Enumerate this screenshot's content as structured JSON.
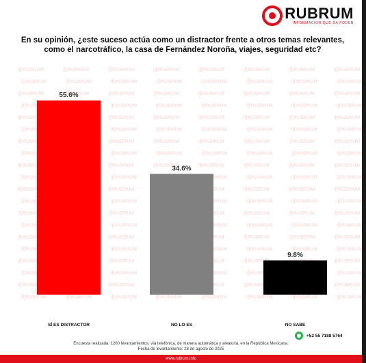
{
  "brand": {
    "name": "RUBRUM",
    "tagline": "INFORMACIÓN QUE DA PODER",
    "accent": "#e0101a"
  },
  "question": "En su opinión, ¿este suceso actúa como un distractor frente a otros temas relevantes, como el narcotráfico, la casa de Fernández Noroña, viajes, seguridad etc?",
  "chart_data": {
    "type": "bar",
    "categories": [
      "SÍ ES DISTRACTOR",
      "NO LO ES",
      "NO SABE"
    ],
    "values": [
      55.6,
      34.6,
      9.8
    ],
    "value_labels": [
      "55.6%",
      "34.6%",
      "9.8%"
    ],
    "colors": [
      "#ff0000",
      "#808080",
      "#000000"
    ],
    "ylim": [
      0,
      60
    ],
    "grid": false,
    "legend": "none"
  },
  "contact": {
    "phone": "+52 55 7188 5764",
    "icon": "whatsapp-icon"
  },
  "footer": {
    "methodology": "Encuesta realizada: 1200 levantamientos, vía telefónica, de manera automática y aleatoria, en la República Mexicana.",
    "date": "Fecha de levantamiento: 28 de agosto de 2025",
    "website": "www.rubrum.info"
  }
}
